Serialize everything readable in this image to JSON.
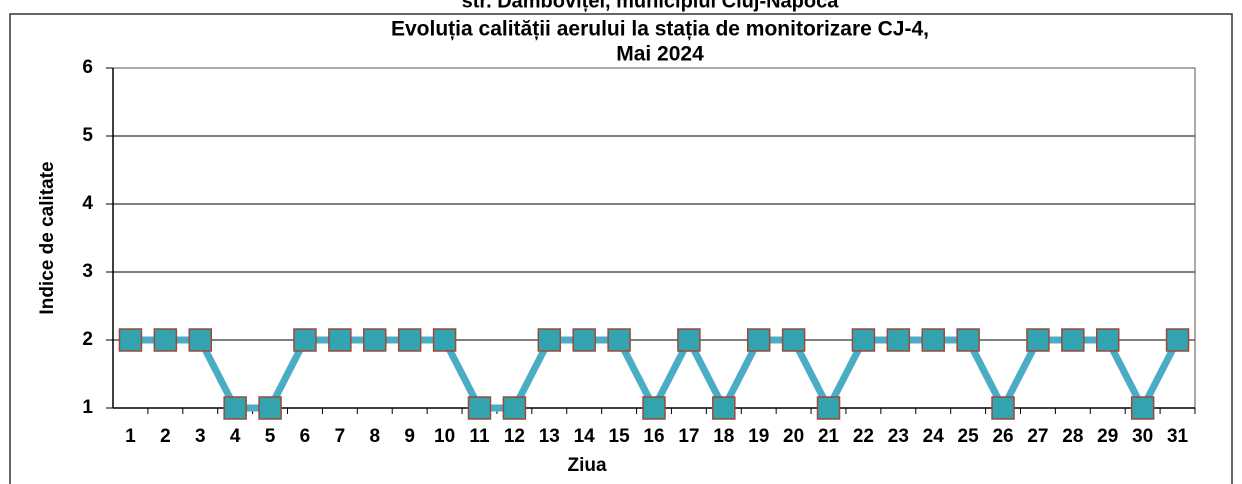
{
  "chart_data": {
    "type": "line",
    "heading": "str. Dâmboviței, municipiul Cluj-Napoca",
    "title": [
      "Evoluția calității aerului la stația de monitorizare CJ-4,",
      "Mai 2024"
    ],
    "xlabel": "Ziua",
    "ylabel": "Indice de calitate",
    "categories": [
      "1",
      "2",
      "3",
      "4",
      "5",
      "6",
      "7",
      "8",
      "9",
      "10",
      "11",
      "12",
      "13",
      "14",
      "15",
      "16",
      "17",
      "18",
      "19",
      "20",
      "21",
      "22",
      "23",
      "24",
      "25",
      "26",
      "27",
      "28",
      "29",
      "30",
      "31"
    ],
    "series": [
      {
        "name": "Indice de calitate",
        "color": "#4bacc6",
        "marker_fill": "#34a3b0",
        "marker_edge": "#9a4a3a",
        "values": [
          2,
          2,
          2,
          1,
          1,
          2,
          2,
          2,
          2,
          2,
          1,
          1,
          2,
          2,
          2,
          1,
          2,
          1,
          2,
          2,
          1,
          2,
          2,
          2,
          2,
          1,
          2,
          2,
          2,
          1,
          2
        ]
      }
    ],
    "ylim": [
      1,
      6
    ],
    "yticks": [
      1,
      2,
      3,
      4,
      5,
      6
    ],
    "grid": true
  }
}
